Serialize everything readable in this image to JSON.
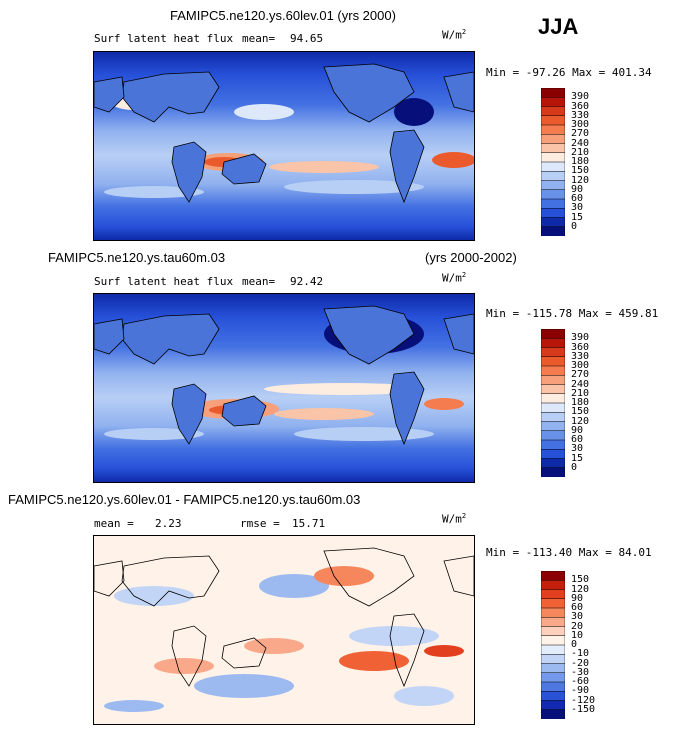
{
  "season": "JJA",
  "panels": [
    {
      "title": "FAMIPC5.ne120.ys.60lev.01 (yrs 2000)",
      "title_right": "",
      "variable": "Surf latent heat flux",
      "stat1_label": "mean=",
      "stat1_value": "94.65",
      "stat2_label": "",
      "stat2_value": "",
      "units": "W/m",
      "units_sup": "2",
      "minmax": "Min = -97.26 Max = 401.34",
      "colorbar": {
        "labels": [
          "390",
          "360",
          "330",
          "300",
          "270",
          "240",
          "210",
          "180",
          "150",
          "120",
          "90",
          "60",
          "30",
          "15",
          "0"
        ],
        "colors": [
          "#8b0000",
          "#b8150a",
          "#d63a1a",
          "#eb5a2d",
          "#f47c4e",
          "#f7a07b",
          "#f9c4a8",
          "#fdece0",
          "#dde9fb",
          "#b8cff5",
          "#91b2ef",
          "#6891ea",
          "#4471e2",
          "#2650d8",
          "#0e2aa8",
          "#070f7a"
        ]
      }
    },
    {
      "title": "FAMIPC5.ne120.ys.tau60m.03",
      "title_right": "(yrs 2000-2002)",
      "variable": "Surf latent heat flux",
      "stat1_label": "mean=",
      "stat1_value": "92.42",
      "stat2_label": "",
      "stat2_value": "",
      "units": "W/m",
      "units_sup": "2",
      "minmax": "Min = -115.78 Max = 459.81",
      "colorbar": {
        "labels": [
          "390",
          "360",
          "330",
          "300",
          "270",
          "240",
          "210",
          "180",
          "150",
          "120",
          "90",
          "60",
          "30",
          "15",
          "0"
        ],
        "colors": [
          "#8b0000",
          "#b8150a",
          "#d63a1a",
          "#eb5a2d",
          "#f47c4e",
          "#f7a07b",
          "#f9c4a8",
          "#fdece0",
          "#dde9fb",
          "#b8cff5",
          "#91b2ef",
          "#6891ea",
          "#4471e2",
          "#2650d8",
          "#0e2aa8",
          "#070f7a"
        ]
      }
    },
    {
      "title": "FAMIPC5.ne120.ys.60lev.01 - FAMIPC5.ne120.ys.tau60m.03",
      "title_right": "",
      "variable": "",
      "stat1_label": "mean =",
      "stat1_value": "2.23",
      "stat2_label": "rmse =",
      "stat2_value": "15.71",
      "units": "W/m",
      "units_sup": "2",
      "minmax": "Min = -113.40 Max =  84.01",
      "colorbar": {
        "labels": [
          "150",
          "120",
          "90",
          "60",
          "30",
          "20",
          "10",
          "0",
          "-10",
          "-20",
          "-30",
          "-60",
          "-90",
          "-120",
          "-150"
        ],
        "colors": [
          "#8b0000",
          "#c41f0d",
          "#e23f1e",
          "#f06236",
          "#f6875d",
          "#f9a98a",
          "#fcd0bc",
          "#fff2e8",
          "#e4edfc",
          "#c2d5f6",
          "#9cbaf0",
          "#7599ea",
          "#4e77e2",
          "#2a52d6",
          "#1229b0",
          "#070f7a"
        ]
      }
    }
  ],
  "chart_data": [
    {
      "type": "heatmap",
      "title": "FAMIPC5.ne120.ys.60lev.01 (yrs 2000)",
      "variable": "Surf latent heat flux",
      "units": "W/m2",
      "mean": 94.65,
      "min": -97.26,
      "max": 401.34,
      "levels": [
        0,
        15,
        30,
        60,
        90,
        120,
        150,
        180,
        210,
        240,
        270,
        300,
        330,
        360,
        390
      ]
    },
    {
      "type": "heatmap",
      "title": "FAMIPC5.ne120.ys.tau60m.03",
      "years": "(yrs 2000-2002)",
      "variable": "Surf latent heat flux",
      "units": "W/m2",
      "mean": 92.42,
      "min": -115.78,
      "max": 459.81,
      "levels": [
        0,
        15,
        30,
        60,
        90,
        120,
        150,
        180,
        210,
        240,
        270,
        300,
        330,
        360,
        390
      ]
    },
    {
      "type": "heatmap",
      "title": "FAMIPC5.ne120.ys.60lev.01 - FAMIPC5.ne120.ys.tau60m.03",
      "units": "W/m2",
      "mean": 2.23,
      "rmse": 15.71,
      "min": -113.4,
      "max": 84.01,
      "levels": [
        -150,
        -120,
        -90,
        -60,
        -30,
        -20,
        -10,
        0,
        10,
        20,
        30,
        60,
        90,
        120,
        150
      ]
    }
  ]
}
